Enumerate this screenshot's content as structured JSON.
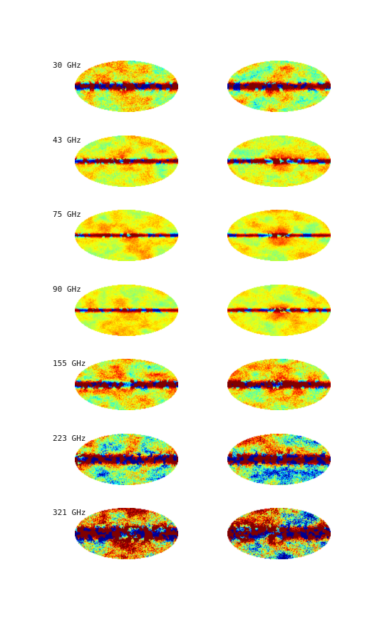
{
  "figure": {
    "rows": [
      {
        "label": "30 GHz",
        "left_level": 0.35,
        "right_level": 0.35
      },
      {
        "label": "43 GHz",
        "left_level": 0.15,
        "right_level": 0.15
      },
      {
        "label": "75 GHz",
        "left_level": 0.05,
        "right_level": 0.05
      },
      {
        "label": "90 GHz",
        "left_level": 0.05,
        "right_level": 0.05
      },
      {
        "label": "155 GHz",
        "left_level": 0.35,
        "right_level": 0.35
      },
      {
        "label": "223 GHz",
        "left_level": 0.6,
        "right_level": 0.65
      },
      {
        "label": "321 GHz",
        "left_level": 0.9,
        "right_level": 0.95
      }
    ],
    "columns": [
      "left",
      "right"
    ],
    "colormap": [
      "#00008f",
      "#0000ff",
      "#00ffff",
      "#80ff80",
      "#ffff00",
      "#ff8000",
      "#ff0000",
      "#800000"
    ],
    "projection": "mollweide"
  }
}
